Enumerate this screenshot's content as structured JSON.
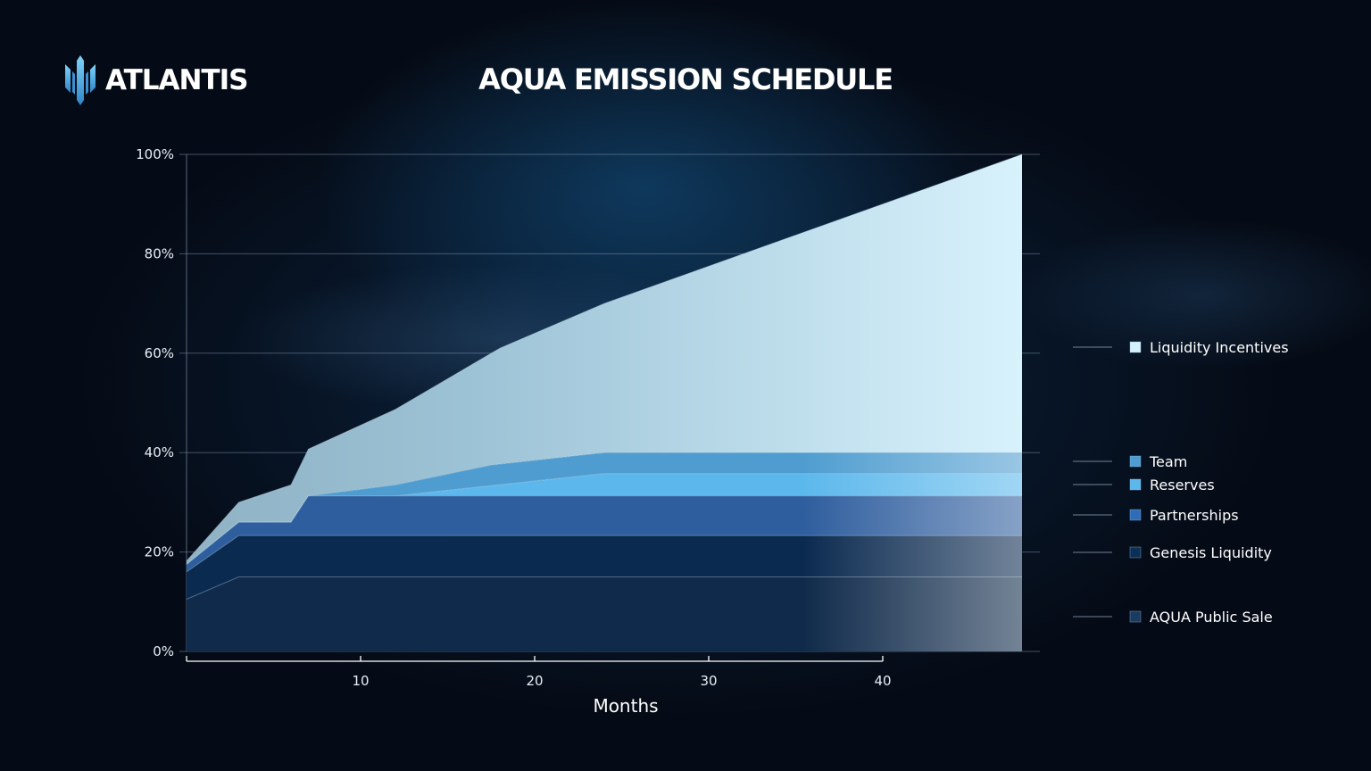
{
  "brand": {
    "name": "ATLANTIS",
    "logo_icon": "atlantis-trident-icon"
  },
  "chart_data": {
    "type": "area",
    "stacked": true,
    "title": "AQUA EMISSION SCHEDULE",
    "xlabel": "Months",
    "ylabel": "",
    "xlim": [
      0,
      48
    ],
    "ylim": [
      0,
      100
    ],
    "x_ticks": [
      10,
      20,
      30,
      40
    ],
    "y_ticks": [
      0,
      20,
      40,
      60,
      80,
      100
    ],
    "y_tick_labels": [
      "0%",
      "20%",
      "40%",
      "60%",
      "80%",
      "100%"
    ],
    "grid": "horizontal",
    "legend_position": "right",
    "series": [
      {
        "name": "AQUA Public Sale",
        "color": "#0f2a4a",
        "points": [
          [
            0,
            10.5
          ],
          [
            3,
            15
          ],
          [
            48,
            15
          ]
        ]
      },
      {
        "name": "Genesis Liquidity",
        "color": "#0b2a50",
        "points": [
          [
            0,
            16
          ],
          [
            3,
            23.3
          ],
          [
            48,
            23.3
          ]
        ]
      },
      {
        "name": "Partnerships",
        "color": "#2f5e9e",
        "points": [
          [
            0,
            17.5
          ],
          [
            3,
            26
          ],
          [
            6,
            26
          ],
          [
            7,
            31.3
          ],
          [
            48,
            31.3
          ]
        ]
      },
      {
        "name": "Reserves",
        "color": "#5cb8ec",
        "points": [
          [
            0,
            17.5
          ],
          [
            3,
            26
          ],
          [
            6,
            26
          ],
          [
            7,
            31.3
          ],
          [
            12,
            31.3
          ],
          [
            24,
            35.8
          ],
          [
            48,
            35.8
          ]
        ]
      },
      {
        "name": "Team",
        "color": "#4f9dd0",
        "points": [
          [
            0,
            17.5
          ],
          [
            3,
            26
          ],
          [
            6,
            26
          ],
          [
            7,
            31.3
          ],
          [
            12,
            33.5
          ],
          [
            17.5,
            37.5
          ],
          [
            24,
            40
          ],
          [
            48,
            40
          ]
        ]
      },
      {
        "name": "Liquidity Incentives",
        "color": "#d6f1fb",
        "points": [
          [
            0,
            18.2
          ],
          [
            3,
            30
          ],
          [
            6,
            33.5
          ],
          [
            7,
            40.7
          ],
          [
            12,
            48.7
          ],
          [
            18,
            61
          ],
          [
            24,
            70
          ],
          [
            48,
            100
          ]
        ]
      }
    ]
  }
}
